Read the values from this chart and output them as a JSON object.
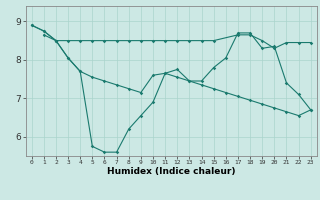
{
  "xlabel": "Humidex (Indice chaleur)",
  "bg_color": "#cce8e4",
  "line_color": "#1a7a6e",
  "grid_color": "#aad4cc",
  "x_ticks": [
    0,
    1,
    2,
    3,
    4,
    5,
    6,
    7,
    8,
    9,
    10,
    11,
    12,
    13,
    14,
    15,
    16,
    17,
    18,
    19,
    20,
    21,
    22,
    23
  ],
  "y_ticks": [
    6,
    7,
    8,
    9
  ],
  "xlim": [
    -0.5,
    23.5
  ],
  "ylim": [
    5.5,
    9.4
  ],
  "line1_x": [
    0,
    1,
    2,
    3,
    4,
    5,
    6,
    7,
    8,
    9,
    10,
    11,
    12,
    13,
    14,
    15,
    16,
    17,
    18,
    19,
    20,
    21,
    22,
    23
  ],
  "line1_y": [
    8.9,
    8.75,
    8.5,
    8.05,
    7.7,
    5.75,
    5.6,
    5.6,
    6.2,
    6.55,
    6.9,
    7.65,
    7.75,
    7.45,
    7.45,
    7.8,
    8.05,
    8.7,
    8.7,
    8.3,
    8.35,
    7.4,
    7.1,
    6.7
  ],
  "line2_x": [
    1,
    2,
    3,
    4,
    5,
    6,
    7,
    8,
    9,
    10,
    11,
    12,
    13,
    14,
    15,
    17,
    18,
    19,
    20,
    21,
    22,
    23
  ],
  "line2_y": [
    8.65,
    8.5,
    8.5,
    8.5,
    8.5,
    8.5,
    8.5,
    8.5,
    8.5,
    8.5,
    8.5,
    8.5,
    8.5,
    8.5,
    8.5,
    8.65,
    8.65,
    8.5,
    8.3,
    8.45,
    8.45,
    8.45
  ],
  "line3_x": [
    0,
    1,
    2,
    3,
    4,
    5,
    6,
    7,
    8,
    9,
    10,
    11,
    12,
    13,
    14,
    15,
    16,
    17,
    18,
    19,
    20,
    21,
    22,
    23
  ],
  "line3_y": [
    8.9,
    8.75,
    8.5,
    8.05,
    7.7,
    7.55,
    7.45,
    7.35,
    7.25,
    7.15,
    7.6,
    7.65,
    7.55,
    7.45,
    7.35,
    7.25,
    7.15,
    7.05,
    6.95,
    6.85,
    6.75,
    6.65,
    6.55,
    6.7
  ]
}
